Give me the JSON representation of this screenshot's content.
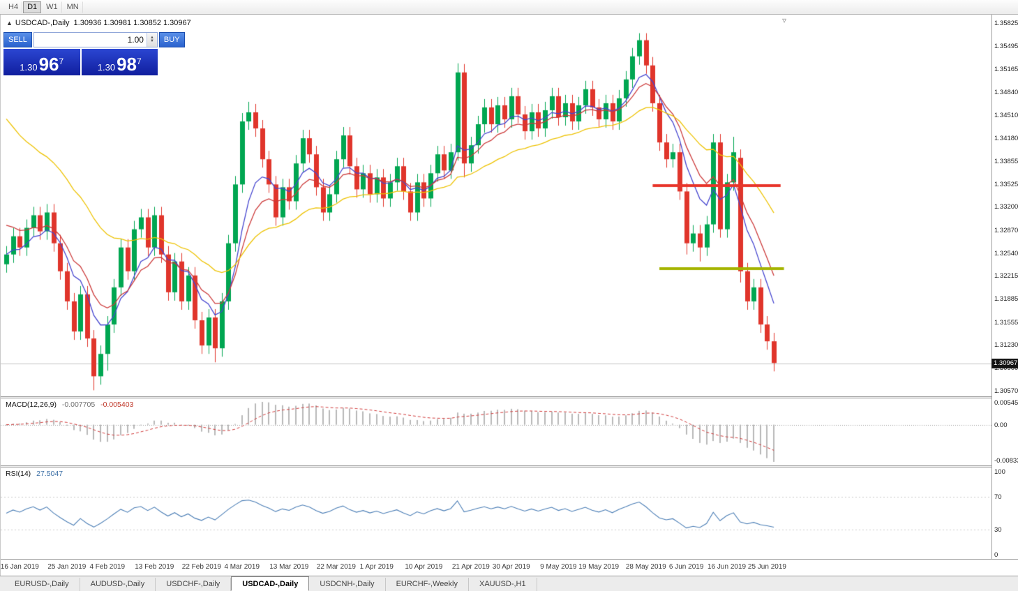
{
  "toolbar": {
    "timeframes": [
      {
        "label": "H4",
        "active": false
      },
      {
        "label": "D1",
        "active": true
      },
      {
        "label": "W1",
        "active": false
      },
      {
        "label": "MN",
        "active": false
      }
    ]
  },
  "title": {
    "arrow": "▲",
    "symbol": "USDCAD-,Daily",
    "ohlc": "1.30936 1.30981 1.30852 1.30967"
  },
  "one_click": {
    "sell_label": "SELL",
    "buy_label": "BUY",
    "volume": "1.00",
    "sell_price": {
      "small": "1.30",
      "big": "96",
      "sup": "7"
    },
    "buy_price": {
      "small": "1.30",
      "big": "98",
      "sup": "7"
    }
  },
  "icons": {
    "shift_marker": "▿",
    "spinner_up": "▲",
    "spinner_down": "▼"
  },
  "price_axis": {
    "labels": [
      "1.35825",
      "1.35495",
      "1.35165",
      "1.34840",
      "1.34510",
      "1.34180",
      "1.33855",
      "1.33525",
      "1.33200",
      "1.32870",
      "1.32540",
      "1.32215",
      "1.31885",
      "1.31555",
      "1.31230",
      "1.30900",
      "1.30570"
    ],
    "current_price": "1.30967"
  },
  "indicators": {
    "macd": {
      "name": "MACD(12,26,9)",
      "value_main": "-0.007705",
      "value_signal": "-0.005403",
      "scale_max": "0.005454",
      "scale_zero": "0.00",
      "scale_min": "-0.008332"
    },
    "rsi": {
      "name": "RSI(14)",
      "value": "27.5047",
      "scale": [
        "100",
        "70",
        "30",
        "0"
      ]
    }
  },
  "date_axis": {
    "ticks": [
      {
        "label": "16 Jan 2019",
        "i": 2
      },
      {
        "label": "25 Jan 2019",
        "i": 9
      },
      {
        "label": "4 Feb 2019",
        "i": 15
      },
      {
        "label": "13 Feb 2019",
        "i": 22
      },
      {
        "label": "22 Feb 2019",
        "i": 29
      },
      {
        "label": "4 Mar 2019",
        "i": 35
      },
      {
        "label": "13 Mar 2019",
        "i": 42
      },
      {
        "label": "22 Mar 2019",
        "i": 49
      },
      {
        "label": "1 Apr 2019",
        "i": 55
      },
      {
        "label": "10 Apr 2019",
        "i": 62
      },
      {
        "label": "21 Apr 2019",
        "i": 69
      },
      {
        "label": "30 Apr 2019",
        "i": 75
      },
      {
        "label": "9 May 2019",
        "i": 82
      },
      {
        "label": "19 May 2019",
        "i": 88
      },
      {
        "label": "28 May 2019",
        "i": 95
      },
      {
        "label": "6 Jun 2019",
        "i": 101
      },
      {
        "label": "16 Jun 2019",
        "i": 107
      },
      {
        "label": "25 Jun 2019",
        "i": 113
      }
    ]
  },
  "bottom_tabs": {
    "items": [
      {
        "label": "EURUSD-,Daily",
        "active": false
      },
      {
        "label": "AUDUSD-,Daily",
        "active": false
      },
      {
        "label": "USDCHF-,Daily",
        "active": false
      },
      {
        "label": "USDCAD-,Daily",
        "active": true
      },
      {
        "label": "USDCNH-,Daily",
        "active": false
      },
      {
        "label": "EURCHF-,Weekly",
        "active": false
      },
      {
        "label": "XAUUSD-,H1",
        "active": false
      }
    ]
  },
  "colors": {
    "up": "#00a651",
    "down": "#e0352b",
    "ma_fast": "#4545cf",
    "ma_mid": "#cc3a3a",
    "ma_slow": "#edc200",
    "resistance": "#e8362b",
    "support": "#a5b400",
    "macd_hist": "#b8b8b8",
    "macd_signal": "#d03a3a",
    "rsi_line": "#4a7db5",
    "rsi_levels": "#c9c9c9",
    "bid_line": "#c5c5c5",
    "zero_line": "#9a9a9a"
  },
  "chart_data": {
    "type": "candlestick",
    "symbol": "USDCAD",
    "timeframe": "Daily",
    "title": "USDCAD-,Daily",
    "ohlc_current": {
      "open": 1.30936,
      "high": 1.30981,
      "low": 1.30852,
      "close": 1.30967
    },
    "price_range": [
      1.30494,
      1.35945
    ],
    "bid_line": 1.30967,
    "levels": {
      "resistance": {
        "price": 1.335,
        "from_index": 96,
        "to_index": 115,
        "color": "#e8362b"
      },
      "support": {
        "price": 1.3232,
        "from_index": 97,
        "to_index": 115.5,
        "color": "#a5b400"
      }
    },
    "moving_averages": [
      {
        "period": 7,
        "seed": 1.3252,
        "color": "#4545cf"
      },
      {
        "period": 11,
        "seed": 1.3302,
        "color": "#cc3a3a"
      },
      {
        "period": 28,
        "seed": 1.346,
        "color": "#edc200"
      }
    ],
    "macd_params": {
      "fast": 12,
      "slow": 26,
      "signal": 9
    },
    "rsi_params": {
      "period": 14,
      "last_value": 27.5047
    },
    "candles": [
      [
        1.3238,
        1.3264,
        1.3226,
        1.3252
      ],
      [
        1.3252,
        1.329,
        1.324,
        1.3278
      ],
      [
        1.3278,
        1.329,
        1.325,
        1.3262
      ],
      [
        1.3262,
        1.3302,
        1.325,
        1.329
      ],
      [
        1.329,
        1.332,
        1.3278,
        1.3308
      ],
      [
        1.3308,
        1.332,
        1.3273,
        1.3285
      ],
      [
        1.3285,
        1.3324,
        1.3273,
        1.3312
      ],
      [
        1.3312,
        1.3324,
        1.3256,
        1.3268
      ],
      [
        1.3268,
        1.328,
        1.3216,
        1.3228
      ],
      [
        1.3228,
        1.324,
        1.3173,
        1.3185
      ],
      [
        1.3185,
        1.3197,
        1.313,
        1.3142
      ],
      [
        1.3142,
        1.3207,
        1.313,
        1.3195
      ],
      [
        1.3195,
        1.3207,
        1.312,
        1.3132
      ],
      [
        1.3132,
        1.3144,
        1.3058,
        1.3078
      ],
      [
        1.3078,
        1.3122,
        1.3066,
        1.311
      ],
      [
        1.311,
        1.3164,
        1.3086,
        1.3152
      ],
      [
        1.3152,
        1.3217,
        1.314,
        1.3205
      ],
      [
        1.3205,
        1.3274,
        1.3193,
        1.3262
      ],
      [
        1.3262,
        1.3274,
        1.3216,
        1.3228
      ],
      [
        1.3228,
        1.33,
        1.3216,
        1.3288
      ],
      [
        1.3288,
        1.3317,
        1.3276,
        1.3305
      ],
      [
        1.3305,
        1.3317,
        1.325,
        1.3262
      ],
      [
        1.3262,
        1.332,
        1.325,
        1.3308
      ],
      [
        1.3308,
        1.332,
        1.324,
        1.3252
      ],
      [
        1.3252,
        1.3264,
        1.3186,
        1.3198
      ],
      [
        1.3198,
        1.3254,
        1.3186,
        1.3242
      ],
      [
        1.3242,
        1.3254,
        1.3173,
        1.3185
      ],
      [
        1.3185,
        1.3234,
        1.3173,
        1.3222
      ],
      [
        1.3222,
        1.3234,
        1.3146,
        1.3158
      ],
      [
        1.3158,
        1.317,
        1.311,
        1.3122
      ],
      [
        1.3122,
        1.3174,
        1.311,
        1.3162
      ],
      [
        1.3162,
        1.3174,
        1.3098,
        1.3118
      ],
      [
        1.3118,
        1.3197,
        1.3106,
        1.3185
      ],
      [
        1.3185,
        1.328,
        1.3173,
        1.3268
      ],
      [
        1.3268,
        1.3364,
        1.3256,
        1.3352
      ],
      [
        1.3352,
        1.3454,
        1.334,
        1.3442
      ],
      [
        1.3442,
        1.347,
        1.343,
        1.3455
      ],
      [
        1.3455,
        1.3467,
        1.342,
        1.3432
      ],
      [
        1.3432,
        1.3444,
        1.3376,
        1.3388
      ],
      [
        1.3388,
        1.34,
        1.334,
        1.3352
      ],
      [
        1.3352,
        1.3364,
        1.3293,
        1.3305
      ],
      [
        1.3305,
        1.336,
        1.3293,
        1.3348
      ],
      [
        1.3348,
        1.336,
        1.3316,
        1.3328
      ],
      [
        1.3328,
        1.3394,
        1.3316,
        1.3382
      ],
      [
        1.3382,
        1.343,
        1.337,
        1.3418
      ],
      [
        1.3418,
        1.343,
        1.3383,
        1.3395
      ],
      [
        1.3395,
        1.3407,
        1.3336,
        1.3348
      ],
      [
        1.3348,
        1.336,
        1.33,
        1.3312
      ],
      [
        1.3312,
        1.335,
        1.33,
        1.3338
      ],
      [
        1.3338,
        1.34,
        1.3326,
        1.3388
      ],
      [
        1.3388,
        1.3434,
        1.3376,
        1.3422
      ],
      [
        1.3422,
        1.3434,
        1.3366,
        1.3378
      ],
      [
        1.3378,
        1.339,
        1.3333,
        1.3345
      ],
      [
        1.3345,
        1.338,
        1.3333,
        1.3368
      ],
      [
        1.3368,
        1.338,
        1.3326,
        1.3338
      ],
      [
        1.3338,
        1.3374,
        1.3326,
        1.3362
      ],
      [
        1.3362,
        1.3374,
        1.332,
        1.3332
      ],
      [
        1.3332,
        1.3367,
        1.332,
        1.3355
      ],
      [
        1.3355,
        1.339,
        1.3343,
        1.3378
      ],
      [
        1.3378,
        1.339,
        1.333,
        1.3342
      ],
      [
        1.3342,
        1.3354,
        1.33,
        1.3312
      ],
      [
        1.3312,
        1.3367,
        1.33,
        1.3355
      ],
      [
        1.3355,
        1.3367,
        1.332,
        1.3332
      ],
      [
        1.3332,
        1.338,
        1.332,
        1.3368
      ],
      [
        1.3368,
        1.3407,
        1.3356,
        1.3395
      ],
      [
        1.3395,
        1.3407,
        1.336,
        1.3372
      ],
      [
        1.3372,
        1.341,
        1.336,
        1.3398
      ],
      [
        1.3398,
        1.3525,
        1.3386,
        1.3512
      ],
      [
        1.3512,
        1.3524,
        1.3362,
        1.3382
      ],
      [
        1.3382,
        1.342,
        1.337,
        1.3408
      ],
      [
        1.3408,
        1.345,
        1.3396,
        1.3438
      ],
      [
        1.3438,
        1.3474,
        1.3426,
        1.3462
      ],
      [
        1.3462,
        1.3474,
        1.3426,
        1.3438
      ],
      [
        1.3438,
        1.3477,
        1.3426,
        1.3465
      ],
      [
        1.3465,
        1.3477,
        1.3433,
        1.3445
      ],
      [
        1.3445,
        1.349,
        1.3433,
        1.3478
      ],
      [
        1.3478,
        1.349,
        1.344,
        1.3452
      ],
      [
        1.3452,
        1.3464,
        1.3416,
        1.3428
      ],
      [
        1.3428,
        1.3467,
        1.3416,
        1.3455
      ],
      [
        1.3455,
        1.3467,
        1.342,
        1.3432
      ],
      [
        1.3432,
        1.347,
        1.342,
        1.3458
      ],
      [
        1.3458,
        1.349,
        1.3446,
        1.3478
      ],
      [
        1.3478,
        1.349,
        1.3436,
        1.3448
      ],
      [
        1.3448,
        1.348,
        1.3436,
        1.3468
      ],
      [
        1.3468,
        1.348,
        1.343,
        1.3442
      ],
      [
        1.3442,
        1.3477,
        1.343,
        1.3465
      ],
      [
        1.3465,
        1.35,
        1.3453,
        1.3488
      ],
      [
        1.3488,
        1.35,
        1.345,
        1.3462
      ],
      [
        1.3462,
        1.3474,
        1.3433,
        1.3445
      ],
      [
        1.3445,
        1.348,
        1.3433,
        1.3468
      ],
      [
        1.3468,
        1.348,
        1.343,
        1.3442
      ],
      [
        1.3442,
        1.3487,
        1.343,
        1.3475
      ],
      [
        1.3475,
        1.3514,
        1.3463,
        1.3502
      ],
      [
        1.3502,
        1.3547,
        1.349,
        1.3535
      ],
      [
        1.3535,
        1.3568,
        1.3523,
        1.3558
      ],
      [
        1.3558,
        1.3568,
        1.351,
        1.3522
      ],
      [
        1.3522,
        1.3534,
        1.3456,
        1.3468
      ],
      [
        1.3468,
        1.348,
        1.34,
        1.3412
      ],
      [
        1.3412,
        1.3424,
        1.3376,
        1.3388
      ],
      [
        1.3388,
        1.341,
        1.3376,
        1.3398
      ],
      [
        1.3398,
        1.341,
        1.333,
        1.3342
      ],
      [
        1.3342,
        1.3354,
        1.3252,
        1.3268
      ],
      [
        1.3268,
        1.3294,
        1.3256,
        1.3282
      ],
      [
        1.3282,
        1.3294,
        1.3242,
        1.3262
      ],
      [
        1.3262,
        1.3307,
        1.325,
        1.3295
      ],
      [
        1.3295,
        1.3424,
        1.3283,
        1.3412
      ],
      [
        1.3412,
        1.3424,
        1.3276,
        1.3288
      ],
      [
        1.3288,
        1.3367,
        1.3276,
        1.3355
      ],
      [
        1.3355,
        1.342,
        1.3343,
        1.3398
      ],
      [
        1.339,
        1.3402,
        1.3212,
        1.3228
      ],
      [
        1.3228,
        1.324,
        1.3173,
        1.3185
      ],
      [
        1.3185,
        1.3217,
        1.3173,
        1.3205
      ],
      [
        1.3205,
        1.3217,
        1.314,
        1.3152
      ],
      [
        1.3152,
        1.3164,
        1.3116,
        1.3128
      ],
      [
        1.3128,
        1.314,
        1.3085,
        1.3097
      ]
    ]
  }
}
